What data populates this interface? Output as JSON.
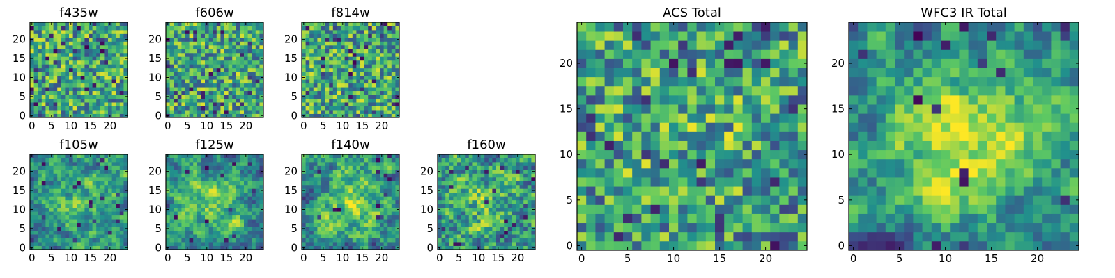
{
  "colormap": "viridis",
  "colormap_stops": [
    "#440154",
    "#3b528b",
    "#21918c",
    "#5ec962",
    "#fde725"
  ],
  "chart_data": [
    {
      "type": "heatmap",
      "title": "f435w",
      "grid_size": 25,
      "x_ticks": [
        0,
        5,
        10,
        15,
        20
      ],
      "y_ticks": [
        0,
        5,
        10,
        15,
        20
      ],
      "xlim": [
        -0.5,
        24.5
      ],
      "ylim": [
        -0.5,
        24.5
      ],
      "seed": 11,
      "smooth": 0,
      "dark_frac": 0.06,
      "center_boost": 0.0,
      "values": null
    },
    {
      "type": "heatmap",
      "title": "f606w",
      "grid_size": 25,
      "x_ticks": [
        0,
        5,
        10,
        15,
        20
      ],
      "y_ticks": [
        0,
        5,
        10,
        15,
        20
      ],
      "xlim": [
        -0.5,
        24.5
      ],
      "ylim": [
        -0.5,
        24.5
      ],
      "seed": 23,
      "smooth": 0,
      "dark_frac": 0.04,
      "center_boost": 0.0,
      "values": null
    },
    {
      "type": "heatmap",
      "title": "f814w",
      "grid_size": 25,
      "x_ticks": [
        0,
        5,
        10,
        15,
        20
      ],
      "y_ticks": [
        0,
        5,
        10,
        15,
        20
      ],
      "xlim": [
        -0.5,
        24.5
      ],
      "ylim": [
        -0.5,
        24.5
      ],
      "seed": 37,
      "smooth": 0,
      "dark_frac": 0.06,
      "center_boost": 0.0,
      "values": null
    },
    {
      "type": "heatmap",
      "title": "f105w",
      "grid_size": 25,
      "x_ticks": [
        0,
        5,
        10,
        15,
        20
      ],
      "y_ticks": [
        0,
        5,
        10,
        15,
        20
      ],
      "xlim": [
        -0.5,
        24.5
      ],
      "ylim": [
        -0.5,
        24.5
      ],
      "seed": 41,
      "smooth": 2,
      "dark_frac": 0.03,
      "center_boost": 0.25,
      "values": null
    },
    {
      "type": "heatmap",
      "title": "f125w",
      "grid_size": 25,
      "x_ticks": [
        0,
        5,
        10,
        15,
        20
      ],
      "y_ticks": [
        0,
        5,
        10,
        15,
        20
      ],
      "xlim": [
        -0.5,
        24.5
      ],
      "ylim": [
        -0.5,
        24.5
      ],
      "seed": 53,
      "smooth": 2,
      "dark_frac": 0.03,
      "center_boost": 0.25,
      "values": null
    },
    {
      "type": "heatmap",
      "title": "f140w",
      "grid_size": 25,
      "x_ticks": [
        0,
        5,
        10,
        15,
        20
      ],
      "y_ticks": [
        0,
        5,
        10,
        15,
        20
      ],
      "xlim": [
        -0.5,
        24.5
      ],
      "ylim": [
        -0.5,
        24.5
      ],
      "seed": 67,
      "smooth": 2,
      "dark_frac": 0.02,
      "center_boost": 0.3,
      "values": null
    },
    {
      "type": "heatmap",
      "title": "f160w",
      "grid_size": 25,
      "x_ticks": [
        0,
        5,
        10,
        15,
        20
      ],
      "y_ticks": [
        0,
        5,
        10,
        15,
        20
      ],
      "xlim": [
        -0.5,
        24.5
      ],
      "ylim": [
        -0.5,
        24.5
      ],
      "seed": 71,
      "smooth": 1,
      "dark_frac": 0.03,
      "center_boost": 0.2,
      "values": null
    },
    {
      "type": "heatmap",
      "title": "ACS Total",
      "grid_size": 25,
      "x_ticks": [
        0,
        5,
        10,
        15,
        20
      ],
      "y_ticks": [
        0,
        5,
        10,
        15,
        20
      ],
      "xlim": [
        -0.5,
        24.5
      ],
      "ylim": [
        -0.5,
        24.5
      ],
      "seed": 83,
      "smooth": 0,
      "dark_frac": 0.05,
      "center_boost": 0.1,
      "values": null
    },
    {
      "type": "heatmap",
      "title": "WFC3 IR Total",
      "grid_size": 25,
      "x_ticks": [
        0,
        5,
        10,
        15,
        20
      ],
      "y_ticks": [
        0,
        5,
        10,
        15,
        20
      ],
      "xlim": [
        -0.5,
        24.5
      ],
      "ylim": [
        -0.5,
        24.5
      ],
      "seed": 97,
      "smooth": 2,
      "dark_frac": 0.03,
      "center_boost": 0.45,
      "values": null
    }
  ]
}
